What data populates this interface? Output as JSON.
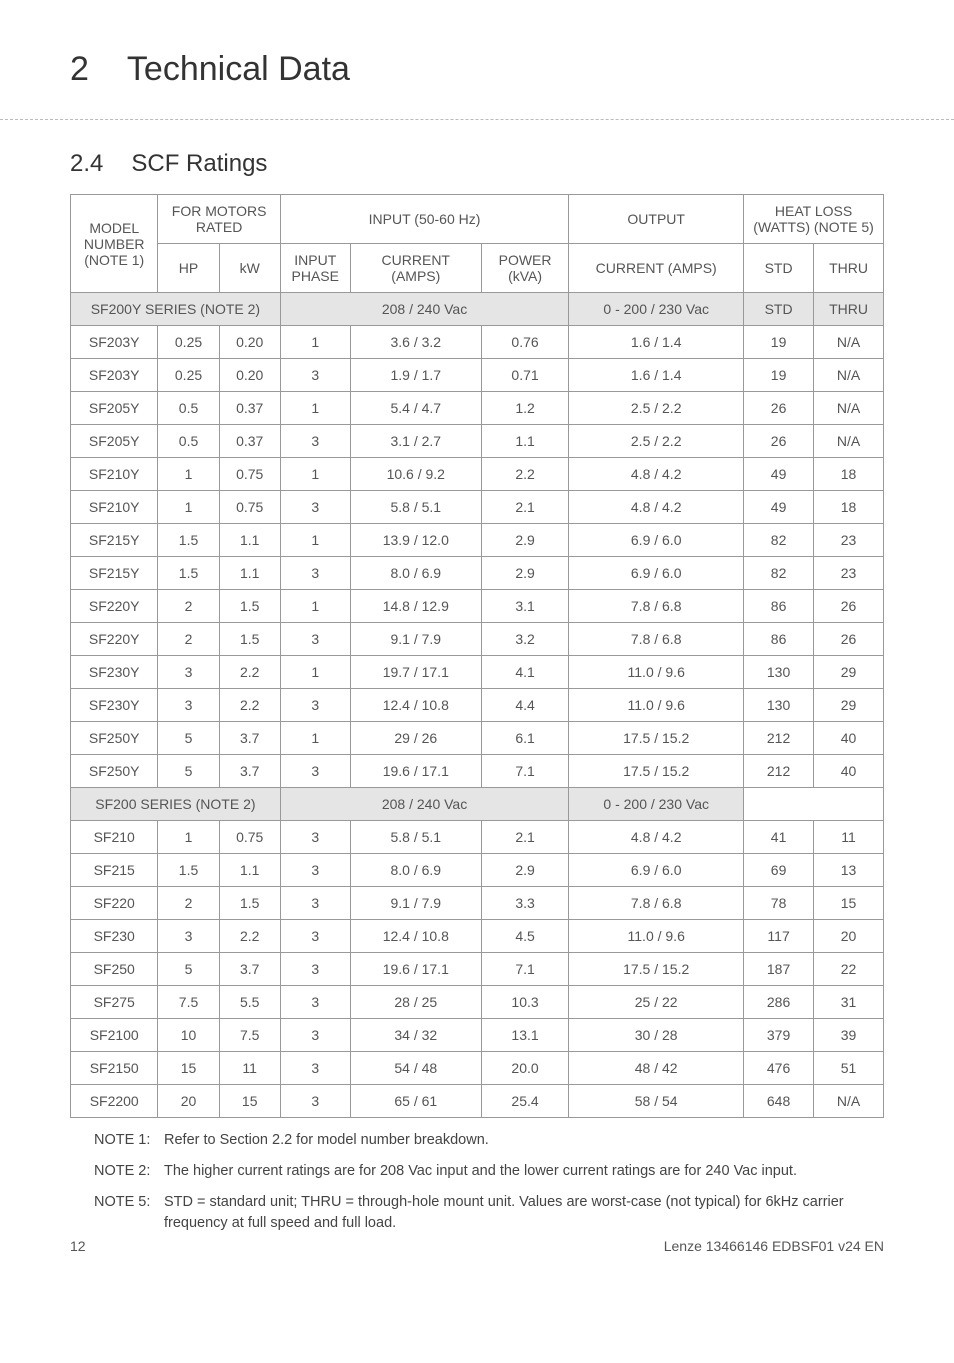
{
  "chapter": {
    "num": "2",
    "title": "Technical Data"
  },
  "section": {
    "num": "2.4",
    "title": "SCF Ratings"
  },
  "table": {
    "head": {
      "model": "MODEL NUMBER (NOTE 1)",
      "for_motors": "FOR MOTORS RATED",
      "input_group": "INPUT (50-60 Hz)",
      "output": "OUTPUT",
      "heat": "HEAT LOSS (WATTS) (NOTE 5)",
      "hp": "HP",
      "kw": "kW",
      "phase": "INPUT PHASE",
      "current_in": "CURRENT (AMPS)",
      "power": "POWER (kVA)",
      "current_out": "CURRENT (AMPS)",
      "std": "STD",
      "thru": "THRU"
    },
    "band1": {
      "series": "SF200Y SERIES (NOTE 2)",
      "vac_in": "208 / 240 Vac",
      "vac_out": "0 - 200 / 230 Vac"
    },
    "band2": {
      "series": "SF200 SERIES (NOTE 2)",
      "vac_in": "208 / 240 Vac",
      "vac_out": "0 - 200 / 230 Vac"
    },
    "rows1": [
      {
        "m": "SF203Y",
        "hp": "0.25",
        "kw": "0.20",
        "ph": "1",
        "ci": "3.6 / 3.2",
        "p": "0.76",
        "co": "1.6 / 1.4",
        "s": "19",
        "t": "N/A"
      },
      {
        "m": "SF203Y",
        "hp": "0.25",
        "kw": "0.20",
        "ph": "3",
        "ci": "1.9 / 1.7",
        "p": "0.71",
        "co": "1.6 / 1.4",
        "s": "19",
        "t": "N/A"
      },
      {
        "m": "SF205Y",
        "hp": "0.5",
        "kw": "0.37",
        "ph": "1",
        "ci": "5.4 / 4.7",
        "p": "1.2",
        "co": "2.5 / 2.2",
        "s": "26",
        "t": "N/A"
      },
      {
        "m": "SF205Y",
        "hp": "0.5",
        "kw": "0.37",
        "ph": "3",
        "ci": "3.1 / 2.7",
        "p": "1.1",
        "co": "2.5 / 2.2",
        "s": "26",
        "t": "N/A"
      },
      {
        "m": "SF210Y",
        "hp": "1",
        "kw": "0.75",
        "ph": "1",
        "ci": "10.6 / 9.2",
        "p": "2.2",
        "co": "4.8 / 4.2",
        "s": "49",
        "t": "18"
      },
      {
        "m": "SF210Y",
        "hp": "1",
        "kw": "0.75",
        "ph": "3",
        "ci": "5.8 / 5.1",
        "p": "2.1",
        "co": "4.8 / 4.2",
        "s": "49",
        "t": "18"
      },
      {
        "m": "SF215Y",
        "hp": "1.5",
        "kw": "1.1",
        "ph": "1",
        "ci": "13.9 / 12.0",
        "p": "2.9",
        "co": "6.9 / 6.0",
        "s": "82",
        "t": "23"
      },
      {
        "m": "SF215Y",
        "hp": "1.5",
        "kw": "1.1",
        "ph": "3",
        "ci": "8.0 / 6.9",
        "p": "2.9",
        "co": "6.9 / 6.0",
        "s": "82",
        "t": "23"
      },
      {
        "m": "SF220Y",
        "hp": "2",
        "kw": "1.5",
        "ph": "1",
        "ci": "14.8 / 12.9",
        "p": "3.1",
        "co": "7.8 / 6.8",
        "s": "86",
        "t": "26"
      },
      {
        "m": "SF220Y",
        "hp": "2",
        "kw": "1.5",
        "ph": "3",
        "ci": "9.1 / 7.9",
        "p": "3.2",
        "co": "7.8 / 6.8",
        "s": "86",
        "t": "26"
      },
      {
        "m": "SF230Y",
        "hp": "3",
        "kw": "2.2",
        "ph": "1",
        "ci": "19.7 / 17.1",
        "p": "4.1",
        "co": "11.0 / 9.6",
        "s": "130",
        "t": "29"
      },
      {
        "m": "SF230Y",
        "hp": "3",
        "kw": "2.2",
        "ph": "3",
        "ci": "12.4 / 10.8",
        "p": "4.4",
        "co": "11.0 / 9.6",
        "s": "130",
        "t": "29"
      },
      {
        "m": "SF250Y",
        "hp": "5",
        "kw": "3.7",
        "ph": "1",
        "ci": "29 / 26",
        "p": "6.1",
        "co": "17.5 / 15.2",
        "s": "212",
        "t": "40"
      },
      {
        "m": "SF250Y",
        "hp": "5",
        "kw": "3.7",
        "ph": "3",
        "ci": "19.6 / 17.1",
        "p": "7.1",
        "co": "17.5 / 15.2",
        "s": "212",
        "t": "40"
      }
    ],
    "rows2": [
      {
        "m": "SF210",
        "hp": "1",
        "kw": "0.75",
        "ph": "3",
        "ci": "5.8 / 5.1",
        "p": "2.1",
        "co": "4.8 / 4.2",
        "s": "41",
        "t": "11"
      },
      {
        "m": "SF215",
        "hp": "1.5",
        "kw": "1.1",
        "ph": "3",
        "ci": "8.0 / 6.9",
        "p": "2.9",
        "co": "6.9 / 6.0",
        "s": "69",
        "t": "13"
      },
      {
        "m": "SF220",
        "hp": "2",
        "kw": "1.5",
        "ph": "3",
        "ci": "9.1 / 7.9",
        "p": "3.3",
        "co": "7.8 / 6.8",
        "s": "78",
        "t": "15"
      },
      {
        "m": "SF230",
        "hp": "3",
        "kw": "2.2",
        "ph": "3",
        "ci": "12.4 / 10.8",
        "p": "4.5",
        "co": "11.0 / 9.6",
        "s": "117",
        "t": "20"
      },
      {
        "m": "SF250",
        "hp": "5",
        "kw": "3.7",
        "ph": "3",
        "ci": "19.6 / 17.1",
        "p": "7.1",
        "co": "17.5 / 15.2",
        "s": "187",
        "t": "22"
      },
      {
        "m": "SF275",
        "hp": "7.5",
        "kw": "5.5",
        "ph": "3",
        "ci": "28 / 25",
        "p": "10.3",
        "co": "25 / 22",
        "s": "286",
        "t": "31"
      },
      {
        "m": "SF2100",
        "hp": "10",
        "kw": "7.5",
        "ph": "3",
        "ci": "34 / 32",
        "p": "13.1",
        "co": "30 / 28",
        "s": "379",
        "t": "39"
      },
      {
        "m": "SF2150",
        "hp": "15",
        "kw": "11",
        "ph": "3",
        "ci": "54 / 48",
        "p": "20.0",
        "co": "48 / 42",
        "s": "476",
        "t": "51"
      },
      {
        "m": "SF2200",
        "hp": "20",
        "kw": "15",
        "ph": "3",
        "ci": "65 / 61",
        "p": "25.4",
        "co": "58 / 54",
        "s": "648",
        "t": "N/A"
      }
    ]
  },
  "notes": [
    {
      "label": "NOTE 1:",
      "body": "Refer to Section 2.2 for model number breakdown."
    },
    {
      "label": "NOTE 2:",
      "body": "The higher current ratings are for 208 Vac input and the lower current ratings are for 240 Vac input."
    },
    {
      "label": "NOTE 5:",
      "body": "STD = standard unit; THRU = through-hole mount unit. Values are worst-case (not typical) for 6kHz carrier frequency at full speed and full load."
    }
  ],
  "footer": {
    "page": "12",
    "doc": "Lenze 13466146 EDBSF01 v24 EN"
  },
  "colwidths": {
    "model": "10%",
    "hp": "7%",
    "kw": "7%",
    "phase": "8%",
    "ci": "15%",
    "power": "10%",
    "co": "20%",
    "std": "8%",
    "thru": "8%"
  }
}
